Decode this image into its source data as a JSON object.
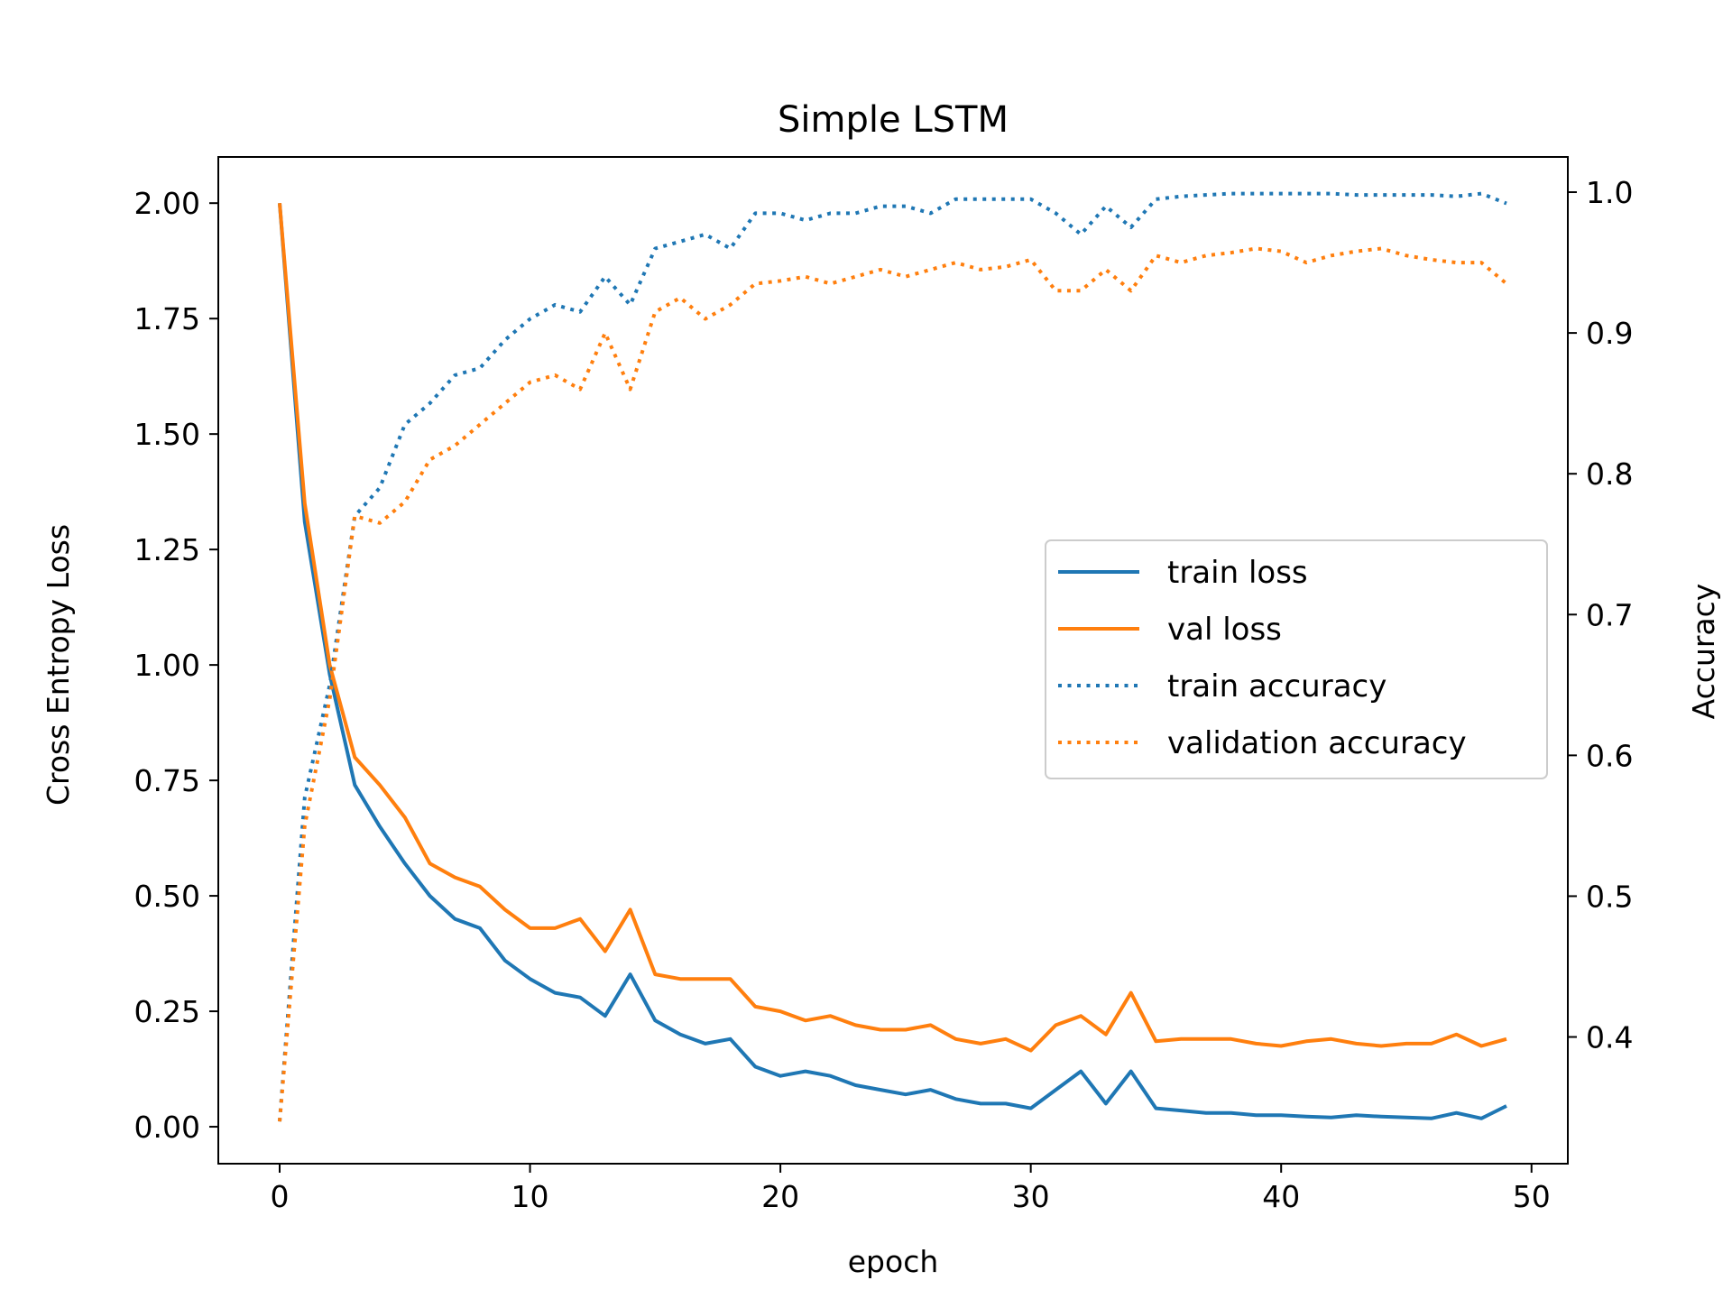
{
  "chart_data": {
    "type": "line",
    "title": "Simple LSTM",
    "xlabel": "epoch",
    "ylabel": "Cross Entropy Loss",
    "ylabel_right": "Accuracy",
    "xlim": [
      -2.45,
      51.45
    ],
    "ylim": [
      -0.08,
      2.1
    ],
    "ylim_right": [
      0.31,
      1.025
    ],
    "x_ticks": [
      0,
      10,
      20,
      30,
      40,
      50
    ],
    "y_ticks": [
      0.0,
      0.25,
      0.5,
      0.75,
      1.0,
      1.25,
      1.5,
      1.75,
      2.0
    ],
    "y_tick_labels": [
      "0.00",
      "0.25",
      "0.50",
      "0.75",
      "1.00",
      "1.25",
      "1.50",
      "1.75",
      "2.00"
    ],
    "y_ticks_right": [
      0.4,
      0.5,
      0.6,
      0.7,
      0.8,
      0.9,
      1.0
    ],
    "y_tick_labels_right": [
      "0.4",
      "0.5",
      "0.6",
      "0.7",
      "0.8",
      "0.9",
      "1.0"
    ],
    "grid": false,
    "legend_position": "center-right",
    "x": [
      0,
      1,
      2,
      3,
      4,
      5,
      6,
      7,
      8,
      9,
      10,
      11,
      12,
      13,
      14,
      15,
      16,
      17,
      18,
      19,
      20,
      21,
      22,
      23,
      24,
      25,
      26,
      27,
      28,
      29,
      30,
      31,
      32,
      33,
      34,
      35,
      36,
      37,
      38,
      39,
      40,
      41,
      42,
      43,
      44,
      45,
      46,
      47,
      48,
      49
    ],
    "series": [
      {
        "name": "train loss",
        "axis": "left",
        "style": "solid",
        "color": "#1f77b4",
        "values": [
          2.0,
          1.31,
          0.98,
          0.74,
          0.65,
          0.57,
          0.5,
          0.45,
          0.43,
          0.36,
          0.32,
          0.29,
          0.28,
          0.24,
          0.33,
          0.23,
          0.2,
          0.18,
          0.19,
          0.13,
          0.11,
          0.12,
          0.11,
          0.09,
          0.08,
          0.07,
          0.08,
          0.06,
          0.05,
          0.05,
          0.04,
          0.08,
          0.12,
          0.05,
          0.12,
          0.04,
          0.035,
          0.03,
          0.03,
          0.025,
          0.025,
          0.022,
          0.02,
          0.025,
          0.022,
          0.02,
          0.018,
          0.03,
          0.018,
          0.045
        ]
      },
      {
        "name": "val loss",
        "axis": "left",
        "style": "solid",
        "color": "#ff7f0e",
        "values": [
          2.0,
          1.35,
          1.0,
          0.8,
          0.74,
          0.67,
          0.57,
          0.54,
          0.52,
          0.47,
          0.43,
          0.43,
          0.45,
          0.38,
          0.47,
          0.33,
          0.32,
          0.32,
          0.32,
          0.26,
          0.25,
          0.23,
          0.24,
          0.22,
          0.21,
          0.21,
          0.22,
          0.19,
          0.18,
          0.19,
          0.165,
          0.22,
          0.24,
          0.2,
          0.29,
          0.185,
          0.19,
          0.19,
          0.19,
          0.18,
          0.175,
          0.185,
          0.19,
          0.18,
          0.175,
          0.18,
          0.18,
          0.2,
          0.175,
          0.19
        ]
      },
      {
        "name": "train accuracy",
        "axis": "right",
        "style": "dotted",
        "color": "#1f77b4",
        "values": [
          0.34,
          0.57,
          0.65,
          0.77,
          0.79,
          0.835,
          0.85,
          0.87,
          0.875,
          0.895,
          0.91,
          0.92,
          0.915,
          0.94,
          0.92,
          0.96,
          0.965,
          0.97,
          0.96,
          0.985,
          0.985,
          0.98,
          0.985,
          0.985,
          0.99,
          0.99,
          0.985,
          0.995,
          0.995,
          0.995,
          0.995,
          0.985,
          0.97,
          0.99,
          0.975,
          0.995,
          0.997,
          0.998,
          0.999,
          0.999,
          0.999,
          0.999,
          0.999,
          0.998,
          0.998,
          0.998,
          0.998,
          0.997,
          0.999,
          0.992
        ]
      },
      {
        "name": "validation accuracy",
        "axis": "right",
        "style": "dotted",
        "color": "#ff7f0e",
        "values": [
          0.34,
          0.55,
          0.64,
          0.77,
          0.765,
          0.78,
          0.81,
          0.82,
          0.835,
          0.85,
          0.865,
          0.87,
          0.86,
          0.9,
          0.86,
          0.915,
          0.925,
          0.91,
          0.92,
          0.935,
          0.937,
          0.94,
          0.935,
          0.94,
          0.945,
          0.94,
          0.945,
          0.95,
          0.945,
          0.947,
          0.952,
          0.93,
          0.93,
          0.945,
          0.93,
          0.955,
          0.95,
          0.955,
          0.957,
          0.96,
          0.958,
          0.95,
          0.955,
          0.958,
          0.96,
          0.955,
          0.952,
          0.95,
          0.95,
          0.935
        ]
      }
    ]
  }
}
